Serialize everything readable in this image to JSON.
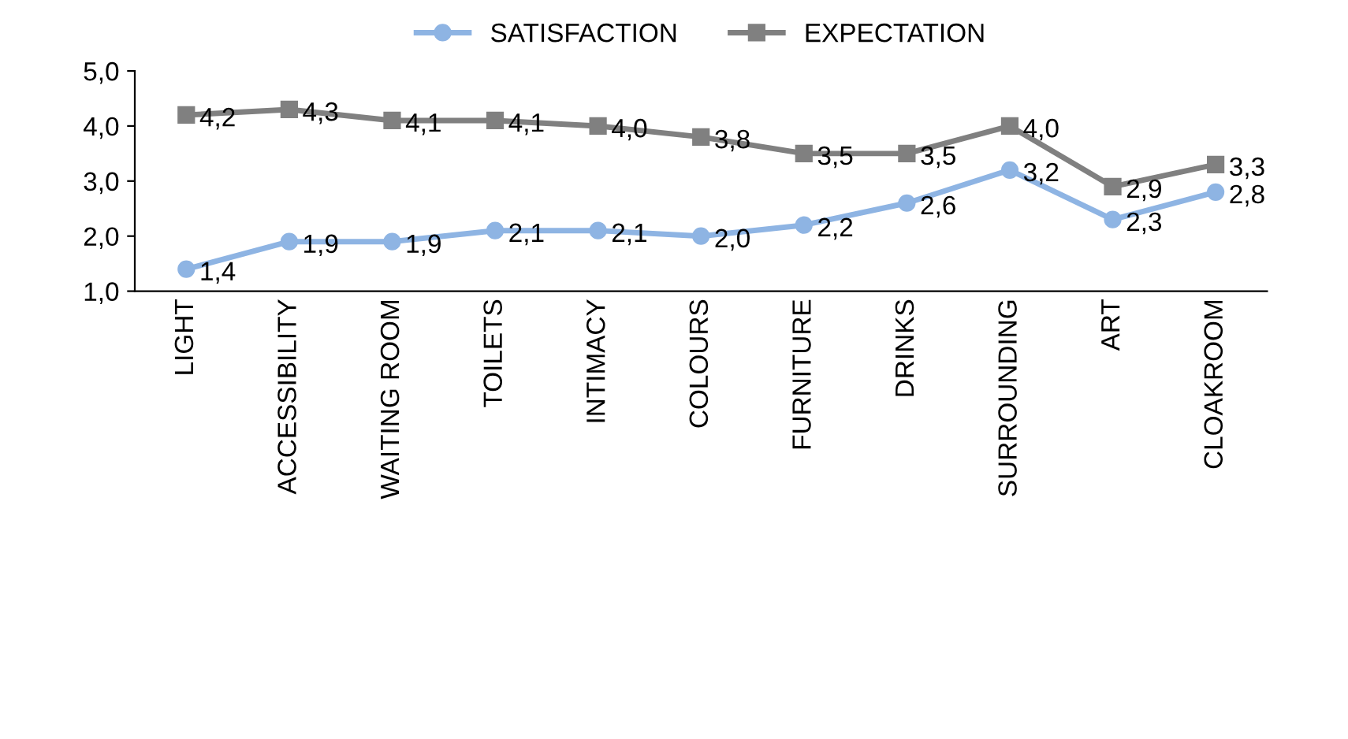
{
  "chart_data": {
    "type": "line",
    "categories": [
      "LIGHT",
      "ACCESSIBILITY",
      "WAITING ROOM",
      "TOILETS",
      "INTIMACY",
      "COLOURS",
      "FURNITURE",
      "DRINKS",
      "SURROUNDING",
      "ART",
      "CLOAKROOM"
    ],
    "series": [
      {
        "name": "SATISFACTION",
        "color": "#8eb4e3",
        "marker": "circle",
        "values": [
          1.4,
          1.9,
          1.9,
          2.1,
          2.1,
          2.0,
          2.2,
          2.6,
          3.2,
          2.3,
          2.8
        ],
        "value_labels": [
          "1,4",
          "1,9",
          "1,9",
          "2,1",
          "2,1",
          "2,0",
          "2,2",
          "2,6",
          "3,2",
          "2,3",
          "2,8"
        ]
      },
      {
        "name": "EXPECTATION",
        "color": "#808080",
        "marker": "square",
        "values": [
          4.2,
          4.3,
          4.1,
          4.1,
          4.0,
          3.8,
          3.5,
          3.5,
          4.0,
          2.9,
          3.3
        ],
        "value_labels": [
          "4,2",
          "4,3",
          "4,1",
          "4,1",
          "4,0",
          "3,8",
          "3,5",
          "3,5",
          "4,0",
          "2,9",
          "3,3"
        ]
      }
    ],
    "ylim": [
      1,
      5
    ],
    "yticks": [
      {
        "value": 1,
        "label": "1,0"
      },
      {
        "value": 2,
        "label": "2,0"
      },
      {
        "value": 3,
        "label": "3,0"
      },
      {
        "value": 4,
        "label": "4,0"
      },
      {
        "value": 5,
        "label": "5,0"
      }
    ],
    "grid": false,
    "legend": "top",
    "line_style": "solid"
  }
}
